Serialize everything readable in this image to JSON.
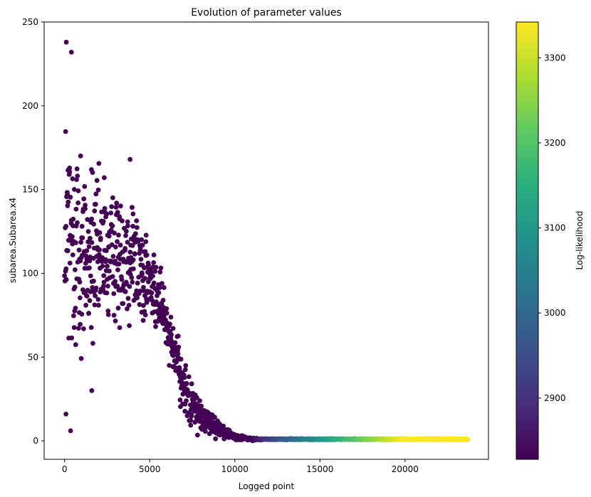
{
  "chart_data": {
    "type": "scatter",
    "title": "Evolution of parameter values",
    "xlabel": "Logged point",
    "ylabel": "subarea.Subarea.x4",
    "xlim": [
      -1200,
      24900
    ],
    "ylim": [
      -11,
      250
    ],
    "xticks": [
      0,
      5000,
      10000,
      15000,
      20000
    ],
    "yticks": [
      0,
      50,
      100,
      150,
      200,
      250
    ],
    "grid": false,
    "colorbar": {
      "label": "Log-likelihood",
      "colormap": "viridis",
      "range": [
        2828,
        3342
      ],
      "ticks": [
        2900,
        3000,
        3100,
        3200,
        3300
      ]
    },
    "point_color": "#440154",
    "envelope": [
      {
        "x": 0,
        "y_min": 5,
        "y_max": 240
      },
      {
        "x": 1000,
        "y_min": 28,
        "y_max": 192
      },
      {
        "x": 2000,
        "y_min": 45,
        "y_max": 175
      },
      {
        "x": 3000,
        "y_min": 58,
        "y_max": 158
      },
      {
        "x": 4000,
        "y_min": 55,
        "y_max": 165
      },
      {
        "x": 5000,
        "y_min": 58,
        "y_max": 130
      },
      {
        "x": 6000,
        "y_min": 50,
        "y_max": 95
      },
      {
        "x": 7000,
        "y_min": 5,
        "y_max": 55
      },
      {
        "x": 8000,
        "y_min": 0,
        "y_max": 28
      },
      {
        "x": 9000,
        "y_min": 0,
        "y_max": 15
      },
      {
        "x": 10000,
        "y_min": 0,
        "y_max": 5
      },
      {
        "x": 11000,
        "y_min": 0,
        "y_max": 2
      },
      {
        "x": 12000,
        "y_min": 0.5,
        "y_max": 1.5
      },
      {
        "x": 23700,
        "y_min": 0.5,
        "y_max": 1.5
      }
    ],
    "highlighted_points": [
      {
        "x": 100,
        "y": 238
      },
      {
        "x": 400,
        "y": 232
      },
      {
        "x": 3850,
        "y": 168
      },
      {
        "x": 1600,
        "y": 30
      },
      {
        "x": 350,
        "y": 6
      },
      {
        "x": 80,
        "y": 16
      }
    ]
  }
}
